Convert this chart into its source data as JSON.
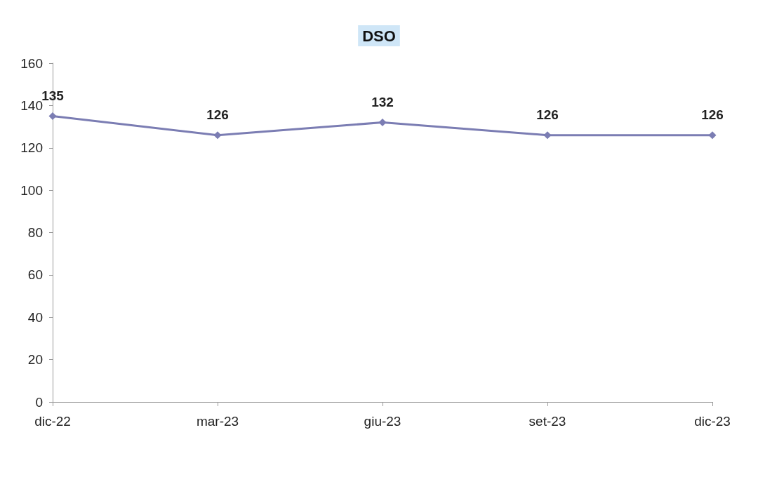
{
  "chart_data": {
    "type": "line",
    "title": "DSO",
    "categories": [
      "dic-22",
      "mar-23",
      "giu-23",
      "set-23",
      "dic-23"
    ],
    "series": [
      {
        "color": "#7b7db3",
        "values": [
          135,
          126,
          132,
          126,
          126
        ]
      }
    ],
    "ylim": [
      0,
      160
    ],
    "yticks": [
      0,
      20,
      40,
      60,
      80,
      100,
      120,
      140,
      160
    ],
    "grid": false,
    "marker": "diamond",
    "line_style": "solid",
    "data_labels": true
  }
}
